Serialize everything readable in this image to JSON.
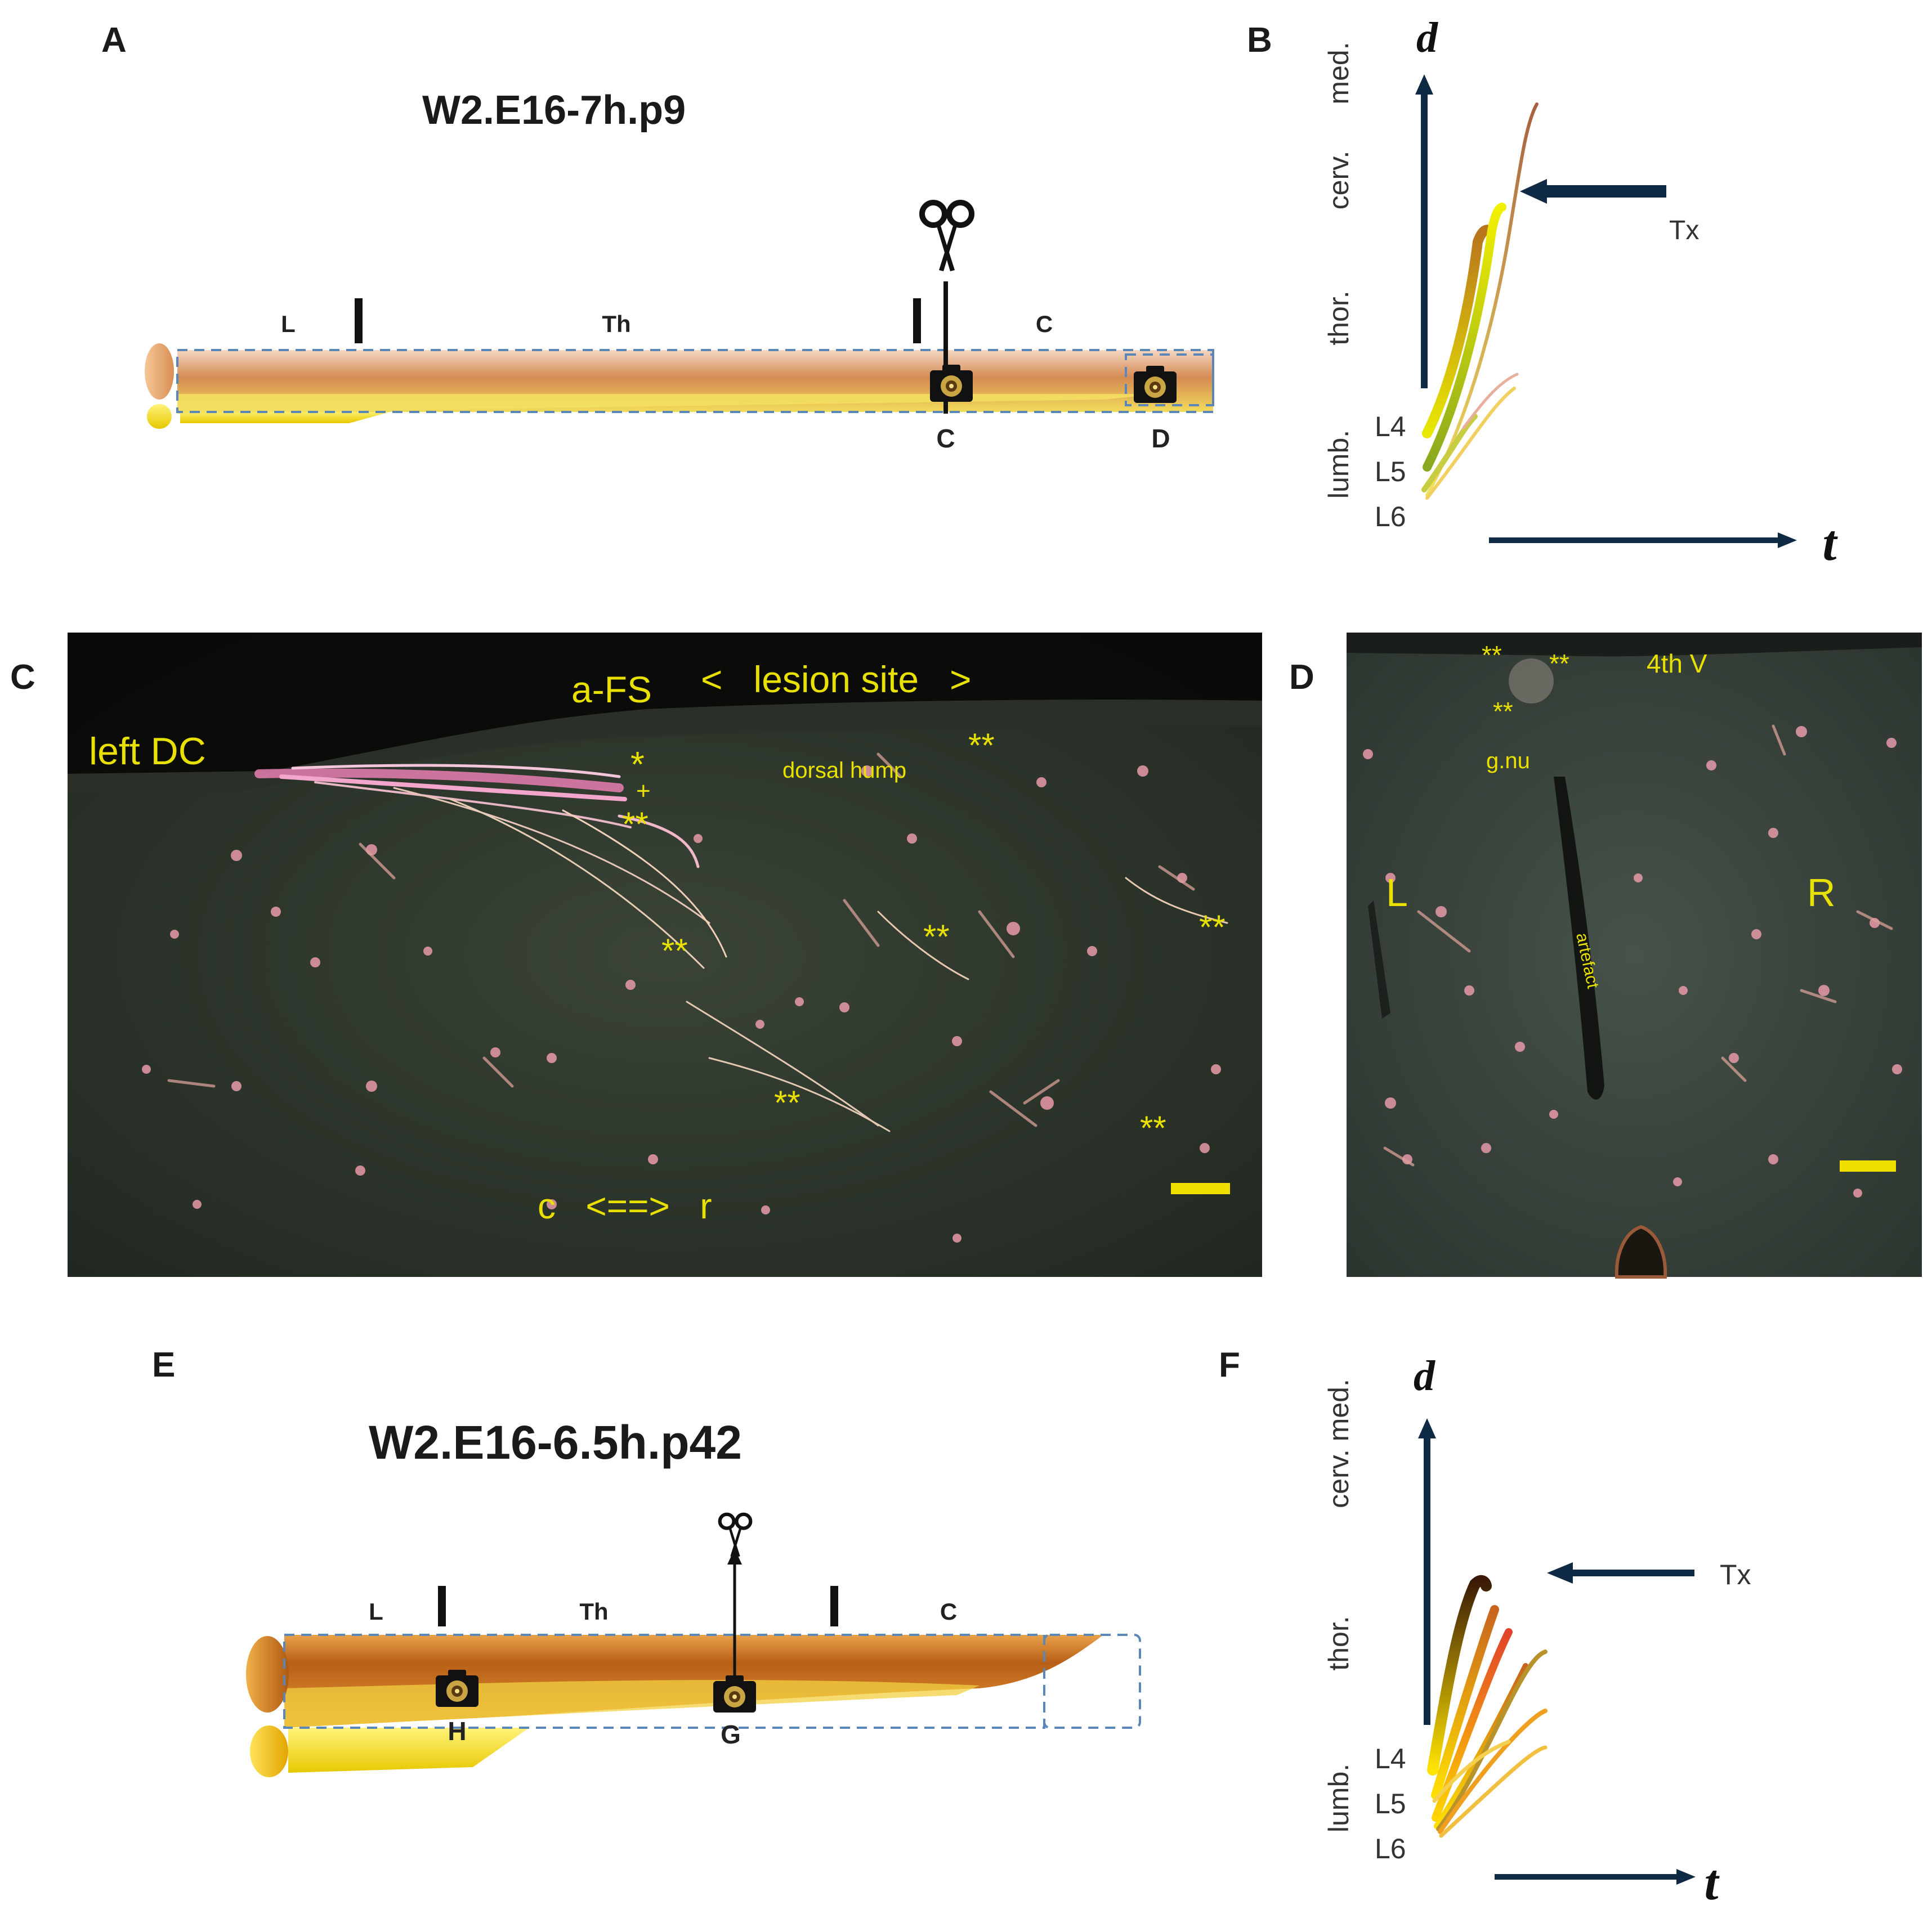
{
  "panels": {
    "a": "A",
    "b": "B",
    "c": "C",
    "d": "D",
    "e": "E",
    "f": "F"
  },
  "panel_a": {
    "title": "W2.E16-7h.p9",
    "segments": [
      "L",
      "Th",
      "C"
    ],
    "camera_labels": [
      "C",
      "D"
    ]
  },
  "panel_b": {
    "axis_y_symbol": "d",
    "axis_x_symbol": "t",
    "region_labels": [
      "med.",
      "cerv.",
      "thor.",
      "lumb."
    ],
    "level_labels": [
      "L4",
      "L5",
      "L6"
    ],
    "arrow_label": "Tx"
  },
  "panel_c": {
    "labels": {
      "left_dc": "left DC",
      "a_fs": "a-FS",
      "lesion_site": "<   lesion site   >",
      "dorsal_hump": "dorsal hump",
      "ast1": "**",
      "ast2": "**",
      "ast3": "**",
      "ast4": "**",
      "ast5": "**",
      "ast6": "**",
      "ast7": "**",
      "ast_single": "*",
      "plus": "+",
      "orientation": "c   <==>   r"
    }
  },
  "panel_d": {
    "labels": {
      "ast1": "**",
      "ast2": "**",
      "ast3": "**",
      "fourth_v": "4th V",
      "g_nu": "g.nu",
      "left": "L",
      "right": "R",
      "artefact": "artefact"
    }
  },
  "panel_e": {
    "title": "W2.E16-6.5h.p42",
    "segments": [
      "L",
      "Th",
      "C"
    ],
    "camera_labels": [
      "H",
      "G"
    ]
  },
  "panel_f": {
    "axis_y_symbol": "d",
    "axis_x_symbol": "t",
    "region_labels": [
      "cerv. med.",
      "thor.",
      "lumb."
    ],
    "level_labels": [
      "L4",
      "L5",
      "L6"
    ],
    "arrow_label": "Tx"
  },
  "colors": {
    "axis": "#0f2a44",
    "micro_label": "#e8e000",
    "cord_orange": "#c8741e",
    "cord_yellow": "#f2e100"
  }
}
